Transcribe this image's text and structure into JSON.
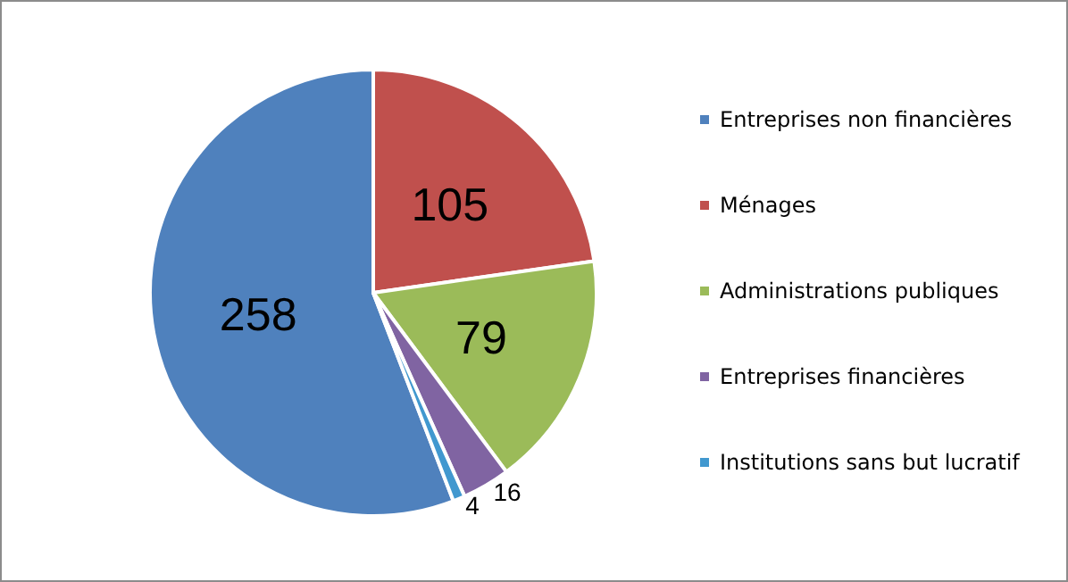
{
  "chart_data": {
    "type": "pie",
    "categories": [
      "Entreprises non financières",
      "Ménages",
      "Administrations publiques",
      "Entreprises financières",
      "Institutions sans but lucratif"
    ],
    "values": [
      258,
      105,
      79,
      16,
      4
    ],
    "colors": [
      "#4f81bd",
      "#c0504d",
      "#9bbb59",
      "#8064a2",
      "#4198cf"
    ],
    "data_labels": true,
    "legend": "right"
  }
}
